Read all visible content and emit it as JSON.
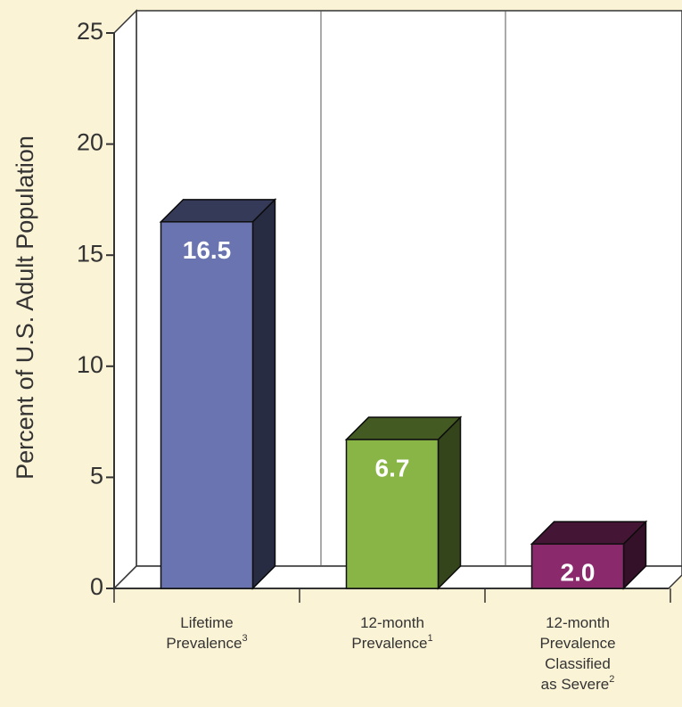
{
  "chart_data": {
    "type": "bar3d",
    "y_label": "Percent of U.S. Adult Population",
    "categories": [
      [
        "Lifetime",
        "Prevalence"
      ],
      [
        "12-month",
        "Prevalence"
      ],
      [
        "12-month",
        "Prevalence",
        "Classified",
        "as Severe"
      ]
    ],
    "footnote_marks": [
      "3",
      "1",
      "2"
    ],
    "values": [
      16.5,
      6.7,
      2.0
    ],
    "value_labels": [
      "16.5",
      "6.7",
      "2.0"
    ],
    "colors": [
      "#6a74b0",
      "#89b547",
      "#8a2a6c"
    ],
    "ylim": [
      0,
      25
    ],
    "yticks": [
      0,
      5,
      10,
      15,
      20,
      25
    ]
  }
}
